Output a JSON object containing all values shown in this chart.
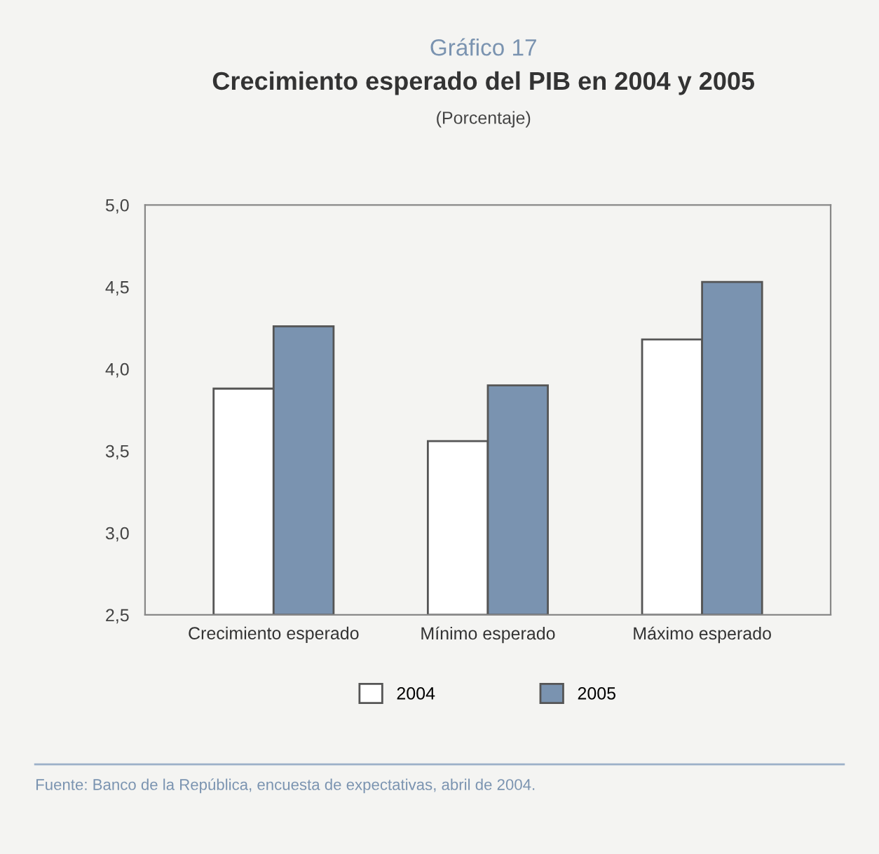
{
  "chart_data": {
    "type": "bar",
    "title": "Gráfico 17",
    "subtitle": "Crecimiento esperado del PIB en 2004 y 2005",
    "ylabel": "(Porcentaje)",
    "categories": [
      "Crecimiento esperado",
      "Mínimo esperado",
      "Máximo esperado"
    ],
    "series": [
      {
        "name": "2004",
        "color": "#ffffff",
        "values": [
          3.88,
          3.56,
          4.18
        ]
      },
      {
        "name": "2005",
        "color": "#7a93b0",
        "values": [
          4.26,
          3.9,
          4.53
        ]
      }
    ],
    "ylim": [
      2.5,
      5.0
    ],
    "yticks": [
      {
        "value": 2.5,
        "label": "2,5"
      },
      {
        "value": 3.0,
        "label": "3,0"
      },
      {
        "value": 3.5,
        "label": "3,5"
      },
      {
        "value": 4.0,
        "label": "4,0"
      },
      {
        "value": 4.5,
        "label": "4,5"
      },
      {
        "value": 5.0,
        "label": "5,0"
      }
    ],
    "grid": false,
    "legend": "bottom",
    "annotations": [
      "Fuente: Banco de la República, encuesta de expectativas, abril de 2004."
    ]
  }
}
